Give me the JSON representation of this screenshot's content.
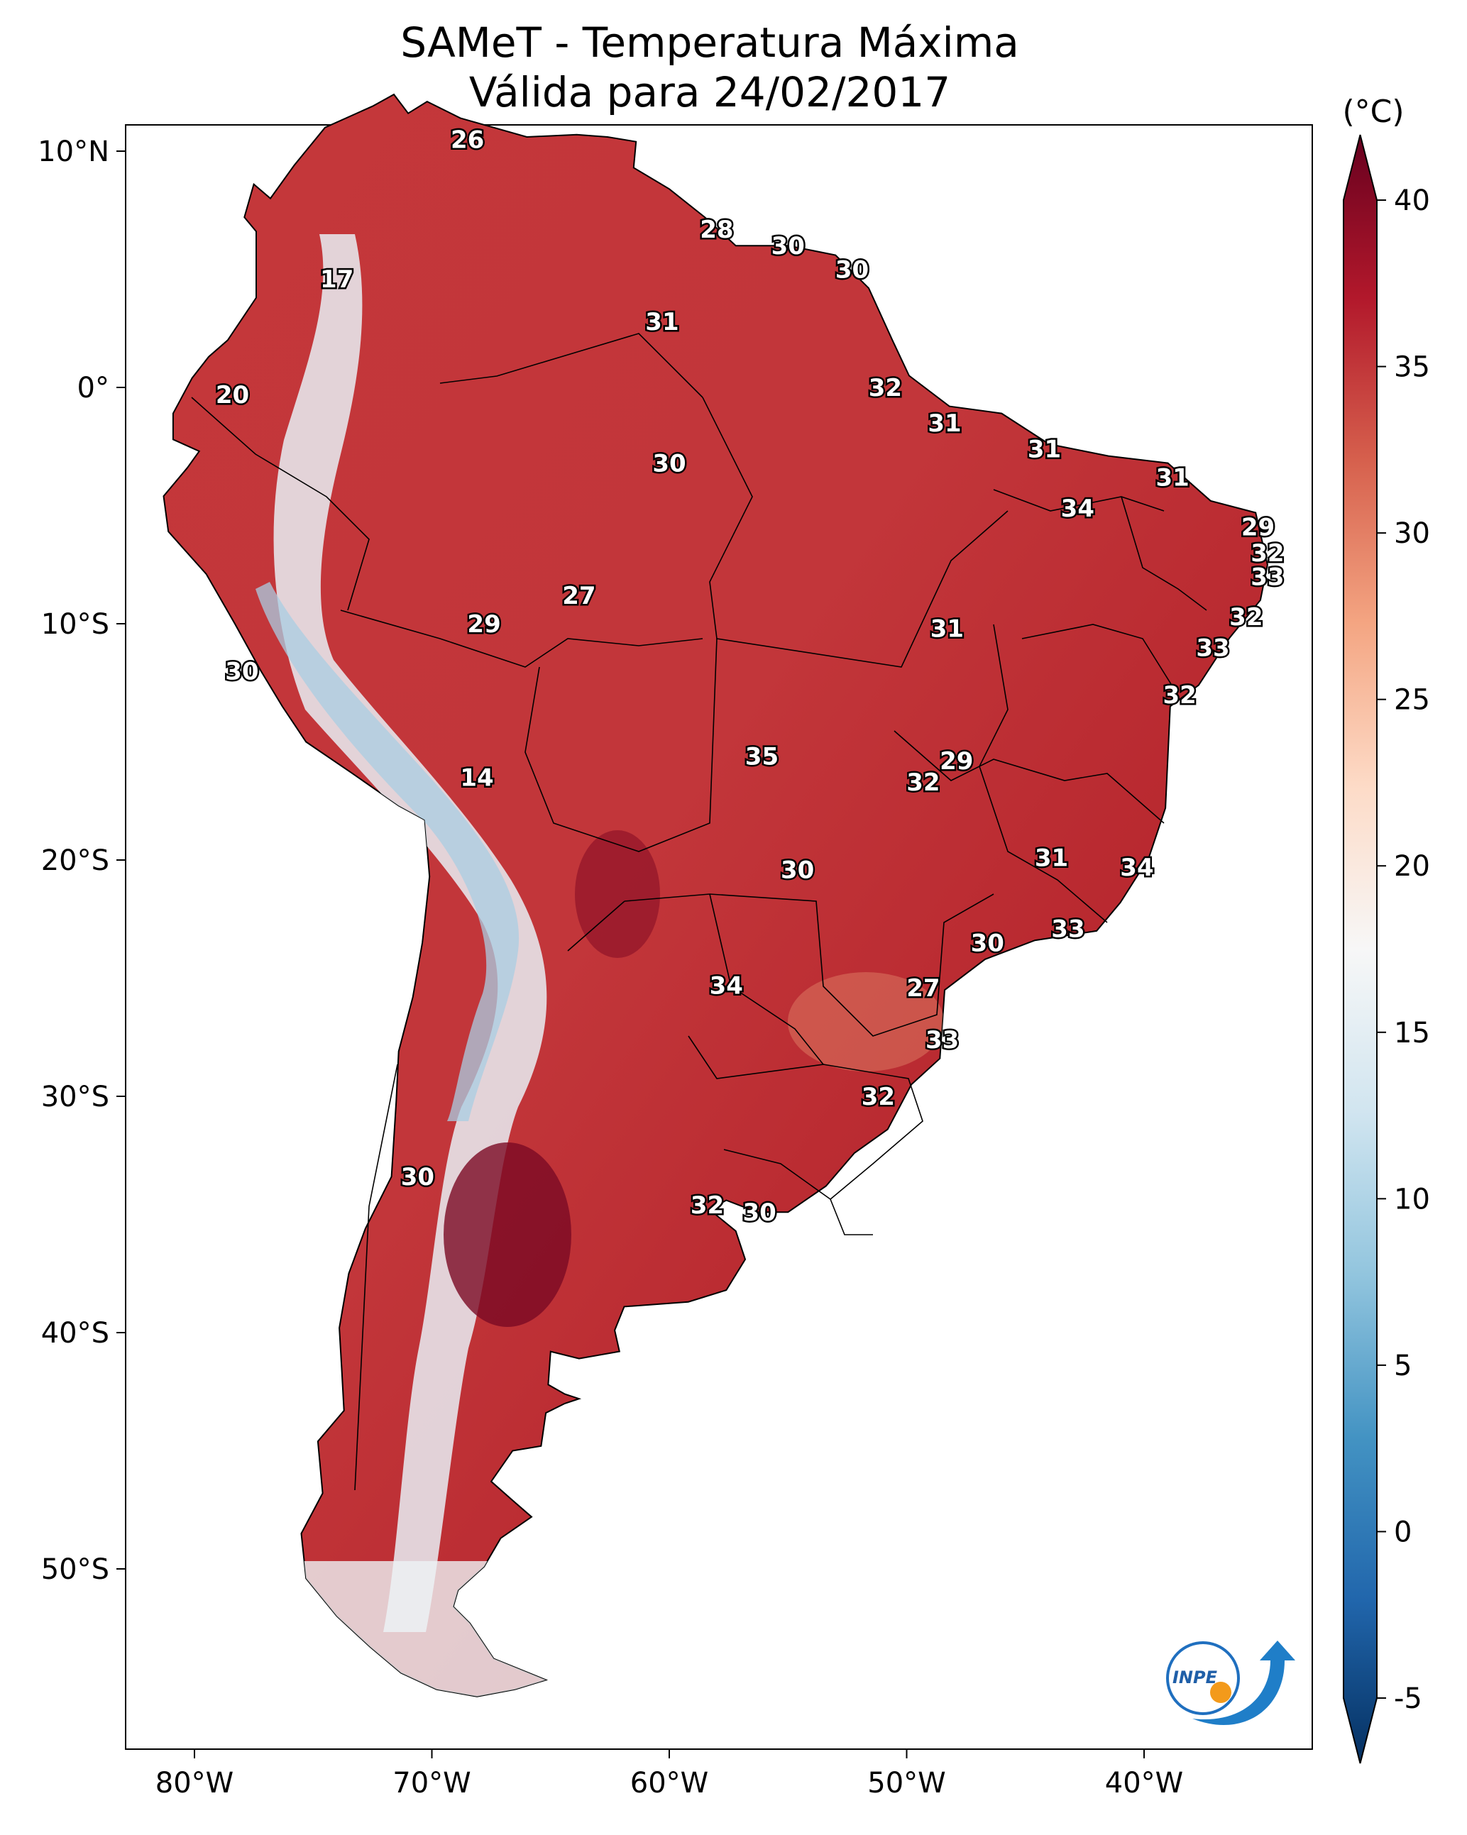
{
  "title": {
    "line1": "SAMeT - Temperatura Máxima",
    "line2": "Válida para 24/02/2017"
  },
  "lon_ticks": [
    "80°W",
    "70°W",
    "60°W",
    "50°W",
    "40°W"
  ],
  "lat_ticks": [
    "10°N",
    "0°",
    "10°S",
    "20°S",
    "30°S",
    "40°S",
    "50°S"
  ],
  "colorbar": {
    "unit": "(°C)",
    "ticks": [
      "40",
      "35",
      "30",
      "25",
      "20",
      "15",
      "10",
      "5",
      "0",
      "-5"
    ],
    "min": -7,
    "max": 42,
    "colors": [
      "#053061",
      "#2166ac",
      "#4393c3",
      "#92c5de",
      "#d1e5f0",
      "#f7f7f7",
      "#fddbc7",
      "#f4a582",
      "#d6604d",
      "#b2182b",
      "#67001f"
    ]
  },
  "map_labels": [
    {
      "text": "26",
      "lon": -68.5,
      "lat": 10.5
    },
    {
      "text": "28",
      "lon": -58.0,
      "lat": 6.7
    },
    {
      "text": "30",
      "lon": -55.0,
      "lat": 6.0
    },
    {
      "text": "30",
      "lon": -52.3,
      "lat": 5.0
    },
    {
      "text": "17",
      "lon": -74.0,
      "lat": 4.6
    },
    {
      "text": "31",
      "lon": -60.3,
      "lat": 2.8
    },
    {
      "text": "32",
      "lon": -50.9,
      "lat": 0.0
    },
    {
      "text": "20",
      "lon": -78.4,
      "lat": -0.3
    },
    {
      "text": "31",
      "lon": -48.4,
      "lat": -1.5
    },
    {
      "text": "31",
      "lon": -44.2,
      "lat": -2.6
    },
    {
      "text": "30",
      "lon": -60.0,
      "lat": -3.2
    },
    {
      "text": "31",
      "lon": -38.8,
      "lat": -3.8
    },
    {
      "text": "34",
      "lon": -42.8,
      "lat": -5.1
    },
    {
      "text": "29",
      "lon": -35.2,
      "lat": -5.9
    },
    {
      "text": "32",
      "lon": -34.8,
      "lat": -7.0
    },
    {
      "text": "33",
      "lon": -34.8,
      "lat": -8.0
    },
    {
      "text": "27",
      "lon": -63.8,
      "lat": -8.8
    },
    {
      "text": "29",
      "lon": -67.8,
      "lat": -10.0
    },
    {
      "text": "32",
      "lon": -35.7,
      "lat": -9.7
    },
    {
      "text": "31",
      "lon": -48.3,
      "lat": -10.2
    },
    {
      "text": "33",
      "lon": -37.1,
      "lat": -11.0
    },
    {
      "text": "30",
      "lon": -78.0,
      "lat": -12.0
    },
    {
      "text": "32",
      "lon": -38.5,
      "lat": -13.0
    },
    {
      "text": "35",
      "lon": -56.1,
      "lat": -15.6
    },
    {
      "text": "29",
      "lon": -47.9,
      "lat": -15.8
    },
    {
      "text": "14",
      "lon": -68.1,
      "lat": -16.5
    },
    {
      "text": "32",
      "lon": -49.3,
      "lat": -16.7
    },
    {
      "text": "31",
      "lon": -43.9,
      "lat": -19.9
    },
    {
      "text": "34",
      "lon": -40.3,
      "lat": -20.3
    },
    {
      "text": "30",
      "lon": -54.6,
      "lat": -20.4
    },
    {
      "text": "33",
      "lon": -43.2,
      "lat": -22.9
    },
    {
      "text": "30",
      "lon": -46.6,
      "lat": -23.5
    },
    {
      "text": "34",
      "lon": -57.6,
      "lat": -25.3
    },
    {
      "text": "27",
      "lon": -49.3,
      "lat": -25.4
    },
    {
      "text": "33",
      "lon": -48.5,
      "lat": -27.6
    },
    {
      "text": "32",
      "lon": -51.2,
      "lat": -30.0
    },
    {
      "text": "30",
      "lon": -70.6,
      "lat": -33.4
    },
    {
      "text": "32",
      "lon": -58.4,
      "lat": -34.6
    },
    {
      "text": "30",
      "lon": -56.2,
      "lat": -34.9
    }
  ]
}
